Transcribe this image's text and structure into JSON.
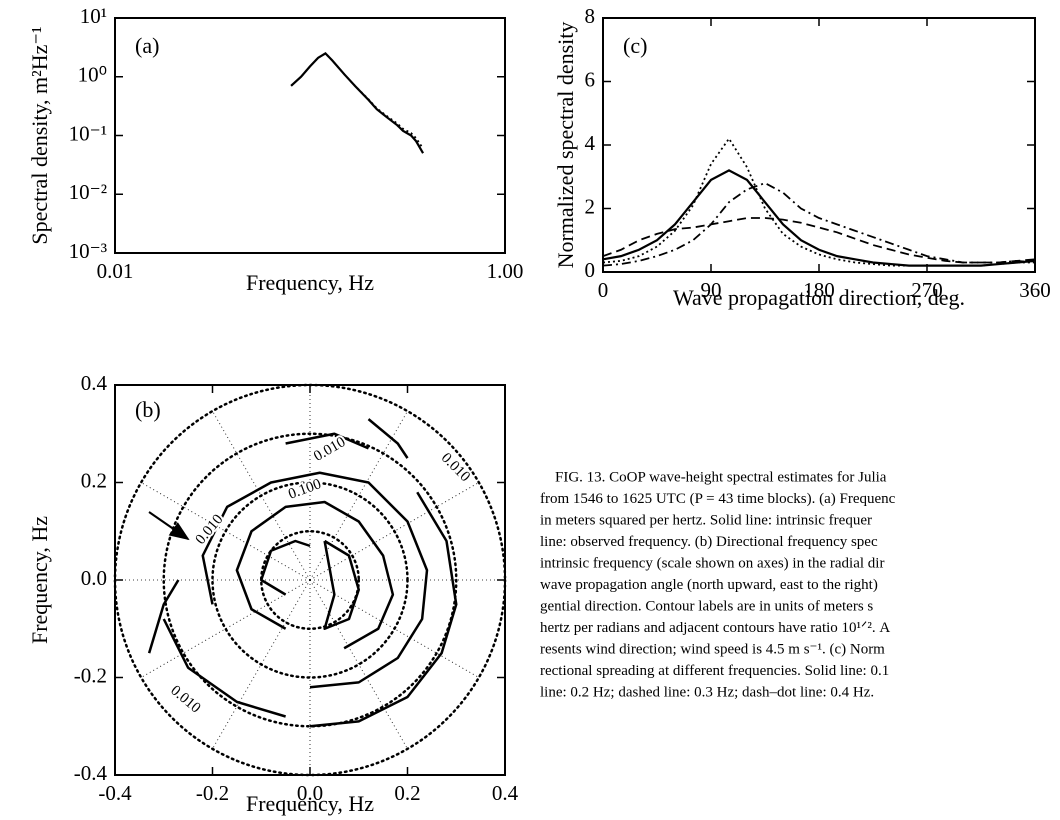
{
  "chart_data": [
    {
      "type": "line",
      "panel_label": "(a)",
      "xlabel": "Frequency, Hz",
      "ylabel": "Spectral density, m²Hz⁻¹",
      "xscale": "log",
      "yscale": "log",
      "xlim": [
        0.01,
        1
      ],
      "ylim": [
        0.001,
        10
      ],
      "xticks": [
        {
          "value": 0.01,
          "label": "0.01"
        },
        {
          "value": 1,
          "label": "1.00"
        }
      ],
      "yticks": [
        {
          "value": 0.001,
          "label": "10⁻³"
        },
        {
          "value": 0.01,
          "label": "10⁻²"
        },
        {
          "value": 0.1,
          "label": "10⁻¹"
        },
        {
          "value": 1,
          "label": "10⁰"
        },
        {
          "value": 10,
          "label": "10¹"
        }
      ],
      "x": [
        0.08,
        0.09,
        0.1,
        0.11,
        0.12,
        0.13,
        0.15,
        0.17,
        0.2,
        0.22,
        0.25,
        0.28,
        0.3,
        0.33,
        0.35,
        0.38
      ],
      "series": [
        {
          "color": "#000000",
          "dash": "solid",
          "values": [
            0.7,
            1.0,
            1.5,
            2.1,
            2.5,
            1.9,
            1.1,
            0.7,
            0.4,
            0.28,
            0.2,
            0.15,
            0.12,
            0.1,
            0.08,
            0.05
          ]
        },
        {
          "color": "#000000",
          "dash": "dotted",
          "values": [
            0.7,
            1.0,
            1.5,
            2.1,
            2.5,
            1.9,
            1.1,
            0.7,
            0.41,
            0.29,
            0.21,
            0.16,
            0.13,
            0.11,
            0.09,
            0.06
          ]
        }
      ]
    },
    {
      "type": "polar-contour",
      "panel_label": "(b)",
      "xlabel": "Frequency, Hz",
      "ylabel": "Frequency, Hz",
      "xlim": [
        -0.4,
        0.4
      ],
      "ylim": [
        -0.4,
        0.4
      ],
      "xticks": [
        -0.4,
        -0.2,
        {
          "value": 0,
          "label": "0.0"
        },
        0.2,
        0.4
      ],
      "yticks": [
        -0.4,
        -0.2,
        {
          "value": 0,
          "label": "0.0"
        },
        0.2,
        0.4
      ],
      "contour_labels": [
        "0.010",
        "0.010",
        "0.010",
        "0.100",
        "0.010"
      ],
      "contours": [
        {
          "x": [
            -0.05,
            -0.12,
            -0.15,
            -0.12,
            -0.05,
            0.03,
            0.1,
            0.15,
            0.17,
            0.14,
            0.07
          ],
          "y": [
            -0.1,
            -0.06,
            0.02,
            0.1,
            0.15,
            0.16,
            0.12,
            0.05,
            -0.03,
            -0.1,
            -0.14
          ]
        },
        {
          "x": [
            0.03,
            0.08,
            0.1,
            0.08,
            0.03,
            0.05,
            0.03
          ],
          "y": [
            0.08,
            0.05,
            -0.02,
            -0.08,
            -0.1,
            -0.03,
            0.08
          ]
        },
        {
          "x": [
            -0.05,
            -0.1,
            -0.08,
            -0.03,
            0.0
          ],
          "y": [
            -0.03,
            0.0,
            0.06,
            0.08,
            0.07
          ]
        },
        {
          "x": [
            -0.2,
            -0.22,
            -0.17,
            -0.08,
            0.02,
            0.12,
            0.2,
            0.24,
            0.23,
            0.18,
            0.1,
            0.0
          ],
          "y": [
            -0.05,
            0.05,
            0.15,
            0.2,
            0.22,
            0.2,
            0.12,
            0.02,
            -0.08,
            -0.16,
            -0.21,
            -0.22
          ]
        },
        {
          "x": [
            0.22,
            0.28,
            0.3,
            0.27,
            0.2,
            0.1,
            0.0
          ],
          "y": [
            0.18,
            0.08,
            -0.05,
            -0.15,
            -0.24,
            -0.29,
            -0.3
          ]
        },
        {
          "x": [
            -0.05,
            0.05,
            0.12
          ],
          "y": [
            0.28,
            0.3,
            0.27
          ]
        },
        {
          "x": [
            -0.3,
            -0.25,
            -0.15,
            -0.05
          ],
          "y": [
            -0.08,
            -0.18,
            -0.25,
            -0.28
          ]
        },
        {
          "x": [
            -0.33,
            -0.3,
            -0.27
          ],
          "y": [
            -0.15,
            -0.05,
            0.0
          ]
        },
        {
          "x": [
            0.12,
            0.18,
            0.2
          ],
          "y": [
            0.33,
            0.28,
            0.25
          ]
        }
      ]
    },
    {
      "type": "line",
      "panel_label": "(c)",
      "xlabel": "Wave propagation direction, deg.",
      "ylabel": "Normalized spectral density",
      "xlim": [
        0,
        360
      ],
      "ylim": [
        0,
        8
      ],
      "xticks": [
        0,
        90,
        180,
        270,
        360
      ],
      "yticks": [
        0,
        2,
        4,
        6,
        8
      ],
      "x": [
        0,
        15,
        30,
        45,
        60,
        75,
        90,
        105,
        120,
        135,
        150,
        165,
        180,
        195,
        210,
        225,
        240,
        255,
        270,
        285,
        300,
        315,
        330,
        345,
        360
      ],
      "series": [
        {
          "color": "#000000",
          "dash": "solid",
          "values": [
            0.4,
            0.5,
            0.7,
            1.0,
            1.5,
            2.2,
            2.9,
            3.2,
            2.9,
            2.2,
            1.5,
            1.0,
            0.7,
            0.5,
            0.4,
            0.3,
            0.25,
            0.2,
            0.2,
            0.2,
            0.2,
            0.2,
            0.25,
            0.3,
            0.35
          ]
        },
        {
          "color": "#000000",
          "dash": "dotted",
          "values": [
            0.3,
            0.35,
            0.5,
            0.8,
            1.3,
            2.1,
            3.4,
            4.2,
            3.3,
            2.0,
            1.2,
            0.8,
            0.55,
            0.4,
            0.3,
            0.25,
            0.2,
            0.2,
            0.2,
            0.2,
            0.2,
            0.2,
            0.25,
            0.3,
            0.3
          ]
        },
        {
          "color": "#000000",
          "dash": "dashed",
          "values": [
            0.5,
            0.7,
            1.0,
            1.2,
            1.35,
            1.4,
            1.5,
            1.6,
            1.7,
            1.7,
            1.65,
            1.55,
            1.4,
            1.25,
            1.05,
            0.85,
            0.7,
            0.55,
            0.45,
            0.35,
            0.3,
            0.3,
            0.3,
            0.35,
            0.4
          ]
        },
        {
          "color": "#000000",
          "dash": "dashdot",
          "values": [
            0.2,
            0.25,
            0.35,
            0.5,
            0.7,
            1.0,
            1.5,
            2.2,
            2.6,
            2.8,
            2.5,
            2.0,
            1.7,
            1.5,
            1.3,
            1.1,
            0.9,
            0.7,
            0.5,
            0.4,
            0.3,
            0.3,
            0.3,
            0.35,
            0.3
          ]
        }
      ]
    }
  ],
  "caption": [
    "FIG. 13. CoOP wave-height spectral estimates for Julia",
    "from 1546 to 1625 UTC (P = 43 time blocks). (a) Frequenc",
    "in meters squared per hertz. Solid line: intrinsic frequer",
    "line: observed frequency. (b) Directional frequency spec",
    "intrinsic frequency (scale shown on axes) in the radial dir",
    "wave propagation angle (north upward, east to the right)",
    "gential direction. Contour labels are in units of meters s",
    "hertz per radians and adjacent contours have ratio 10¹ᐟ². A",
    "resents wind direction; wind speed is 4.5 m s⁻¹. (c) Norm",
    "rectional spreading at different frequencies. Solid line: 0.1",
    "line: 0.2 Hz; dashed line: 0.3 Hz; dash–dot line: 0.4 Hz."
  ]
}
